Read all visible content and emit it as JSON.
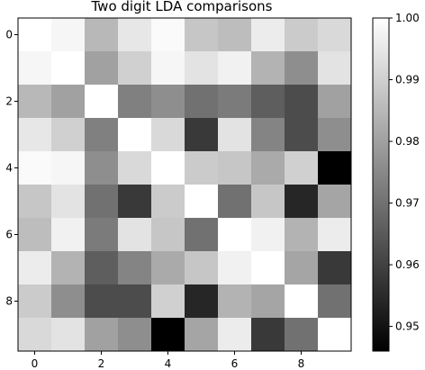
{
  "chart_data": {
    "type": "heatmap",
    "title": "Two digit LDA comparisons",
    "xlabel": "",
    "ylabel": "",
    "x_ticks": [
      "0",
      "2",
      "4",
      "6",
      "8"
    ],
    "y_ticks": [
      "0",
      "2",
      "4",
      "6",
      "8"
    ],
    "colormap": "gray",
    "vmin": 0.946,
    "vmax": 1.0,
    "colorbar_ticks": [
      "1.00",
      "0.99",
      "0.98",
      "0.97",
      "0.96",
      "0.95"
    ],
    "matrix": [
      [
        1.0,
        0.998,
        0.985,
        0.995,
        0.999,
        0.988,
        0.986,
        0.996,
        0.989,
        0.992
      ],
      [
        0.998,
        1.0,
        0.98,
        0.99,
        0.998,
        0.994,
        0.997,
        0.984,
        0.976,
        0.994
      ],
      [
        0.985,
        0.98,
        1.0,
        0.973,
        0.976,
        0.97,
        0.972,
        0.966,
        0.962,
        0.98
      ],
      [
        0.995,
        0.99,
        0.973,
        1.0,
        0.992,
        0.958,
        0.994,
        0.974,
        0.962,
        0.976
      ],
      [
        0.999,
        0.998,
        0.976,
        0.992,
        1.0,
        0.989,
        0.988,
        0.982,
        0.99,
        0.946
      ],
      [
        0.988,
        0.994,
        0.97,
        0.958,
        0.989,
        1.0,
        0.97,
        0.988,
        0.954,
        0.981
      ],
      [
        0.986,
        0.997,
        0.972,
        0.994,
        0.988,
        0.97,
        1.0,
        0.997,
        0.984,
        0.996
      ],
      [
        0.996,
        0.984,
        0.966,
        0.974,
        0.982,
        0.988,
        0.997,
        1.0,
        0.981,
        0.958
      ],
      [
        0.989,
        0.976,
        0.962,
        0.962,
        0.99,
        0.954,
        0.984,
        0.981,
        1.0,
        0.97
      ],
      [
        0.992,
        0.994,
        0.98,
        0.976,
        0.946,
        0.981,
        0.996,
        0.958,
        0.97,
        1.0
      ]
    ],
    "grid": false,
    "colorbar": "right"
  }
}
